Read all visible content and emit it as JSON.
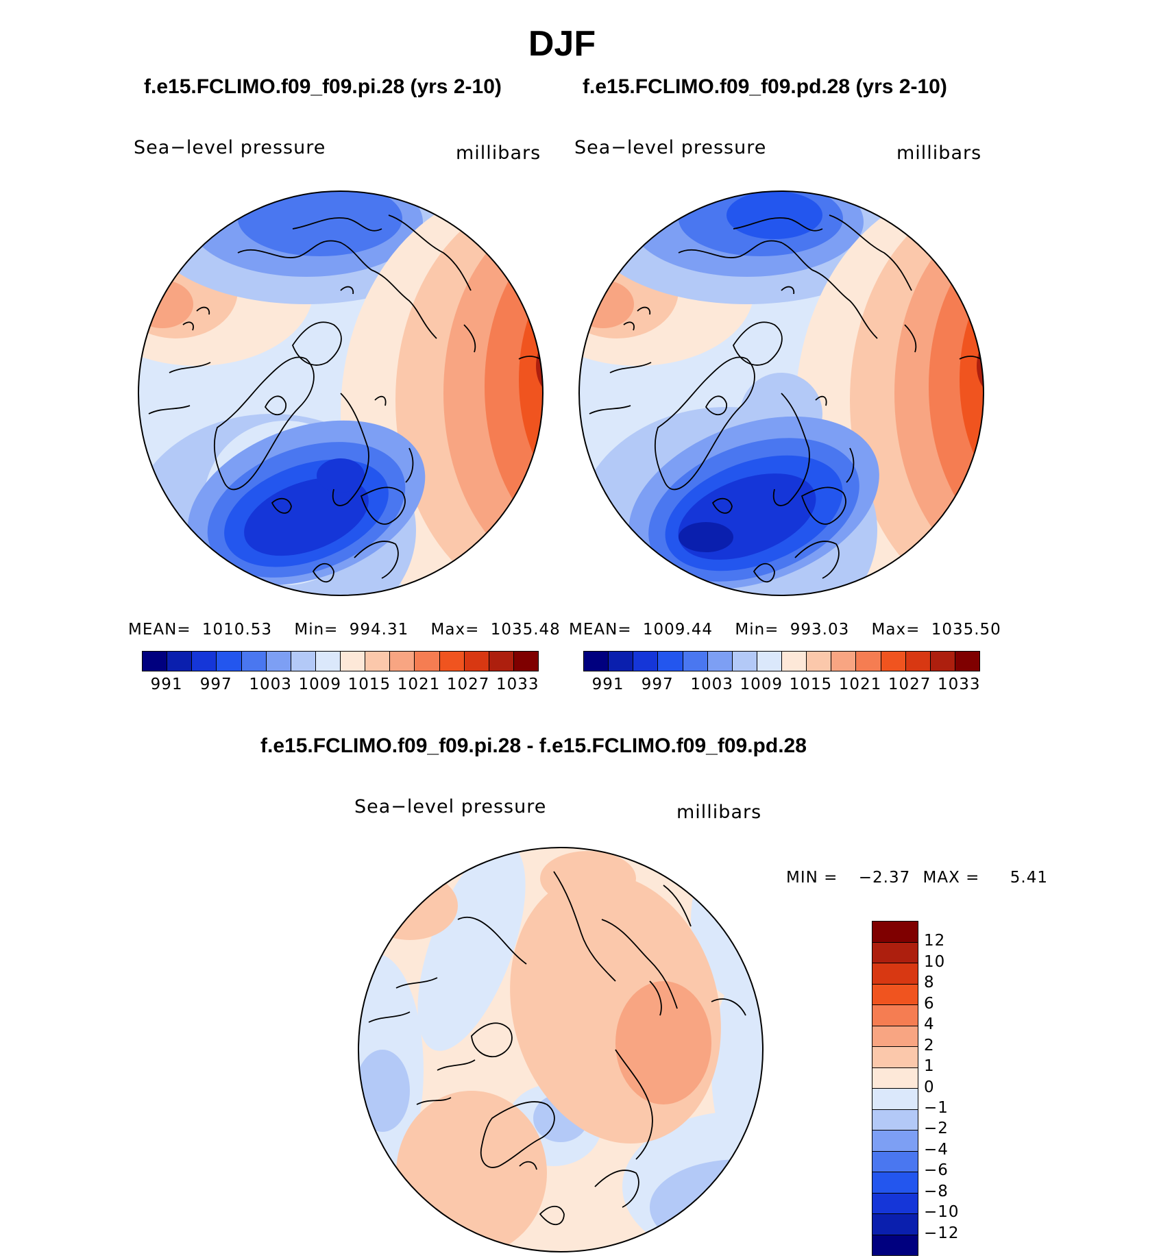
{
  "figure_title": "DJF",
  "panels": [
    {
      "title": "f.e15.FCLIMO.f09_f09.pi.28 (yrs 2-10)",
      "variable": "Sea−level pressure",
      "units": "millibars",
      "stats": {
        "mean_label": "MEAN=",
        "mean": "1010.53",
        "min_label": "Min=",
        "min": "994.31",
        "max_label": "Max=",
        "max": "1035.48"
      },
      "colorbar_labels": [
        "991",
        "997",
        "1003",
        "1009",
        "1015",
        "1021",
        "1027",
        "1033"
      ]
    },
    {
      "title": "f.e15.FCLIMO.f09_f09.pd.28 (yrs 2-10)",
      "variable": "Sea−level pressure",
      "units": "millibars",
      "stats": {
        "mean_label": "MEAN=",
        "mean": "1009.44",
        "min_label": "Min=",
        "min": "993.03",
        "max_label": "Max=",
        "max": "1035.50"
      },
      "colorbar_labels": [
        "991",
        "997",
        "1003",
        "1009",
        "1015",
        "1021",
        "1027",
        "1033"
      ]
    }
  ],
  "diff_panel": {
    "title": "f.e15.FCLIMO.f09_f09.pi.28 - f.e15.FCLIMO.f09_f09.pd.28",
    "variable": "Sea−level pressure",
    "units": "millibars",
    "stats": {
      "min_label": "MIN =",
      "min": "−2.37",
      "max_label": "MAX =",
      "max": "5.41"
    },
    "colorbar_labels": [
      "12",
      "10",
      "8",
      "6",
      "4",
      "2",
      "1",
      "0",
      "−1",
      "−2",
      "−4",
      "−6",
      "−8",
      "−10",
      "−12"
    ]
  },
  "palette": [
    "#00007f",
    "#0a1fae",
    "#1536d8",
    "#2356ee",
    "#4a77f0",
    "#7d9ff4",
    "#b3c9f7",
    "#dbe8fb",
    "#fde8d8",
    "#fbc8ab",
    "#f8a582",
    "#f57d52",
    "#f0541f",
    "#d83812",
    "#ad1f0e",
    "#7f0000"
  ],
  "colors": {
    "coast": "#000000",
    "background": "#ffffff"
  }
}
